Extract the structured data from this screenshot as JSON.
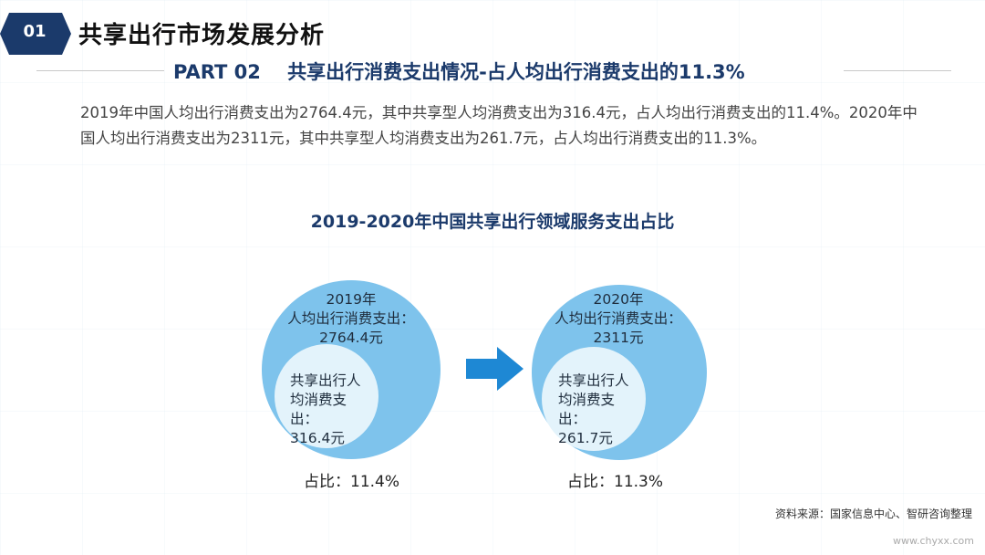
{
  "header": {
    "badge_number": "01",
    "title": "共享出行市场发展分析",
    "part_number": "PART 02",
    "part_title": "共享出行消费支出情况-占人均出行消费支出的11.3%"
  },
  "description": "2019年中国人均出行消费支出为2764.4元，其中共享型人均消费支出为316.4元，占人均出行消费支出的11.4%。2020年中国人均出行消费支出为2311元，其中共享型人均消费支出为261.7元，占人均出行消费支出的11.3%。",
  "diagram": {
    "title": "2019-2020年中国共享出行领域服务支出占比",
    "years": [
      {
        "outer_line1": "2019年",
        "outer_line2": "人均出行消费支出：",
        "outer_line3": "2764.4元",
        "inner_line1": "共享出行人",
        "inner_line2": "均消费支出：",
        "inner_line3": "316.4元",
        "share": "占比：11.4%"
      },
      {
        "outer_line1": "2020年",
        "outer_line2": "人均出行消费支出：",
        "outer_line3": "2311元",
        "inner_line1": "共享出行人",
        "inner_line2": "均消费支出：",
        "inner_line3": "261.7元",
        "share": "占比：11.3%"
      }
    ],
    "colors": {
      "outer": "#7ec3ec",
      "inner": "#e3f3fb",
      "arrow": "#1e88d4",
      "badge": "#1b3a6b"
    }
  },
  "source": "资料来源：国家信息中心、智研咨询整理",
  "watermark": "www.chyxx.com"
}
